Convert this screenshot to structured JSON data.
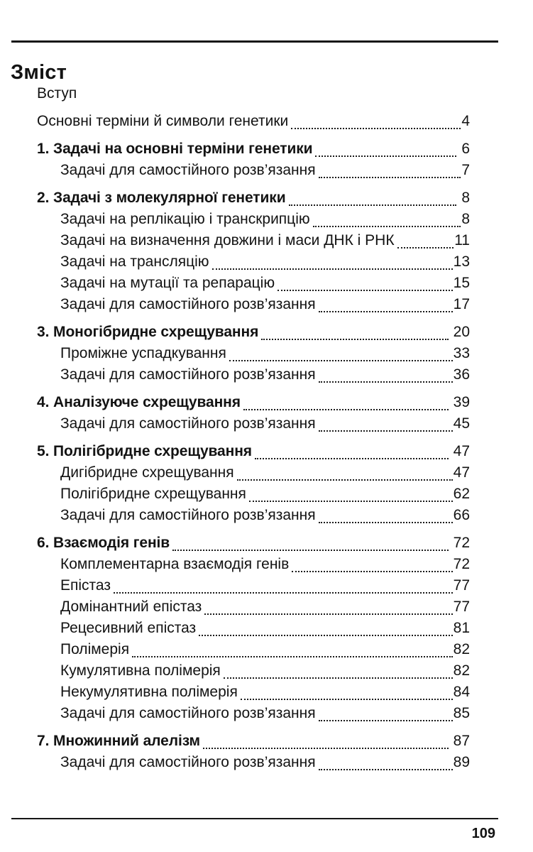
{
  "page": {
    "title": "Зміст",
    "footer_page_number": "109",
    "ink_color": "#131313",
    "background_color": "#ffffff"
  },
  "toc": {
    "entries": [
      {
        "label": "Вступ",
        "page": "",
        "level": "top",
        "bold": false,
        "spaced": true
      },
      {
        "label": "Основні терміни й символи генетики",
        "page": "4",
        "level": "top",
        "bold": false,
        "spaced": true
      },
      {
        "label": "1. Задачі на основні терміни генетики",
        "page": "6",
        "level": "top",
        "bold": true,
        "spaced": true
      },
      {
        "label": "Задачі для самостійного розв’язання",
        "page": "7",
        "level": "sub",
        "bold": false,
        "spaced": false
      },
      {
        "label": "2. Задачі з молекулярної генетики",
        "page": "8",
        "level": "top",
        "bold": true,
        "spaced": true
      },
      {
        "label": "Задачі на реплікацію і транскрипцію",
        "page": "8",
        "level": "sub",
        "bold": false,
        "spaced": false
      },
      {
        "label": "Задачі на визначення довжини і маси ДНК і РНК",
        "page": "11",
        "level": "sub",
        "bold": false,
        "spaced": false
      },
      {
        "label": "Задачі на трансляцію",
        "page": "13",
        "level": "sub",
        "bold": false,
        "spaced": false
      },
      {
        "label": "Задачі на мутації та репарацію",
        "page": "15",
        "level": "sub",
        "bold": false,
        "spaced": false
      },
      {
        "label": "Задачі для самостійного розв’язання",
        "page": "17",
        "level": "sub",
        "bold": false,
        "spaced": false
      },
      {
        "label": "3. Моногібридне схрещування",
        "page": "20",
        "level": "top",
        "bold": true,
        "spaced": true
      },
      {
        "label": "Проміжне успадкування",
        "page": "33",
        "level": "sub",
        "bold": false,
        "spaced": false
      },
      {
        "label": "Задачі для самостійного розв’язання",
        "page": "36",
        "level": "sub",
        "bold": false,
        "spaced": false
      },
      {
        "label": "4. Аналізуюче схрещування",
        "page": "39",
        "level": "top",
        "bold": true,
        "spaced": true
      },
      {
        "label": "Задачі для самостійного розв’язання",
        "page": "45",
        "level": "sub",
        "bold": false,
        "spaced": false
      },
      {
        "label": "5. Полігібридне схрещування",
        "page": "47",
        "level": "top",
        "bold": true,
        "spaced": true
      },
      {
        "label": "Дигібридне схрещування",
        "page": "47",
        "level": "sub",
        "bold": false,
        "spaced": false
      },
      {
        "label": "Полігібридне схрещування",
        "page": "62",
        "level": "sub",
        "bold": false,
        "spaced": false
      },
      {
        "label": "Задачі для самостійного розв’язання",
        "page": "66",
        "level": "sub",
        "bold": false,
        "spaced": false
      },
      {
        "label": "6. Взаємодія генів",
        "page": "72",
        "level": "top",
        "bold": true,
        "spaced": true
      },
      {
        "label": "Комплементарна взаємодія генів",
        "page": "72",
        "level": "sub",
        "bold": false,
        "spaced": false
      },
      {
        "label": "Епістаз",
        "page": "77",
        "level": "sub",
        "bold": false,
        "spaced": false
      },
      {
        "label": "Домінантний епістаз",
        "page": "77",
        "level": "sub",
        "bold": false,
        "spaced": false
      },
      {
        "label": "Рецесивний епістаз",
        "page": "81",
        "level": "sub",
        "bold": false,
        "spaced": false
      },
      {
        "label": "Полімерія",
        "page": "82",
        "level": "sub",
        "bold": false,
        "spaced": false
      },
      {
        "label": "Кумулятивна полімерія",
        "page": "82",
        "level": "sub",
        "bold": false,
        "spaced": false
      },
      {
        "label": "Некумулятивна полімерія",
        "page": "84",
        "level": "sub",
        "bold": false,
        "spaced": false
      },
      {
        "label": "Задачі для самостійного розв’язання",
        "page": "85",
        "level": "sub",
        "bold": false,
        "spaced": false
      },
      {
        "label": "7. Множинний алелізм",
        "page": "87",
        "level": "top",
        "bold": true,
        "spaced": true
      },
      {
        "label": "Задачі для самостійного розв’язання",
        "page": "89",
        "level": "sub",
        "bold": false,
        "spaced": false
      }
    ]
  }
}
